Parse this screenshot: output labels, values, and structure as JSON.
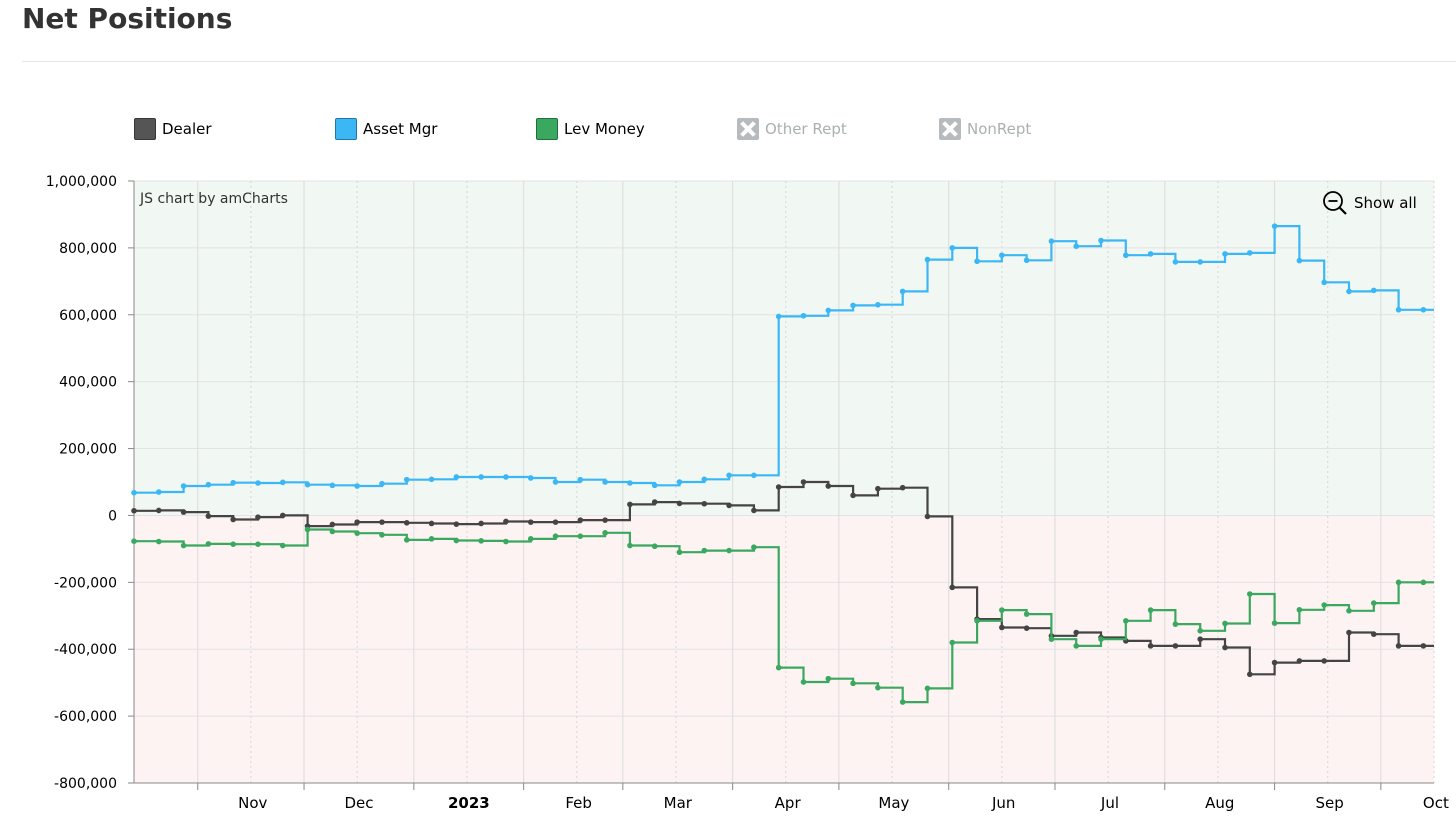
{
  "header": {
    "title": "Net Positions"
  },
  "legend": [
    {
      "label": "Dealer",
      "color": "#555555",
      "enabled": true
    },
    {
      "label": "Asset Mgr",
      "color": "#3bb7f5",
      "enabled": true
    },
    {
      "label": "Lev Money",
      "color": "#3aa85f",
      "enabled": true
    },
    {
      "label": "Other Rept",
      "color": "#b7bbbd",
      "enabled": false
    },
    {
      "label": "NonRept",
      "color": "#b7bbbd",
      "enabled": false
    }
  ],
  "watermark": "JS chart by amCharts",
  "show_all_label": "Show all",
  "icons": {
    "zoom_out": "zoom-out-icon",
    "legend_disabled": "close-icon"
  },
  "chart_data": {
    "type": "line",
    "step": true,
    "ylim": [
      -800000,
      1000000
    ],
    "yticks": [
      -800000,
      -600000,
      -400000,
      -200000,
      0,
      200000,
      400000,
      600000,
      800000,
      1000000
    ],
    "ytick_labels": [
      "-800,000",
      "-600,000",
      "-400,000",
      "-200,000",
      "0",
      "200,000",
      "400,000",
      "600,000",
      "800,000",
      "1,000,000"
    ],
    "xlim": [
      "2022-10-14",
      "2023-10-16"
    ],
    "xticks": [
      {
        "date": "2022-11-01",
        "label": "Nov",
        "bold": false
      },
      {
        "date": "2022-12-01",
        "label": "Dec",
        "bold": false
      },
      {
        "date": "2023-01-01",
        "label": "2023",
        "bold": true
      },
      {
        "date": "2023-02-01",
        "label": "Feb",
        "bold": false
      },
      {
        "date": "2023-03-01",
        "label": "Mar",
        "bold": false
      },
      {
        "date": "2023-04-01",
        "label": "Apr",
        "bold": false
      },
      {
        "date": "2023-05-01",
        "label": "May",
        "bold": false
      },
      {
        "date": "2023-06-01",
        "label": "Jun",
        "bold": false
      },
      {
        "date": "2023-07-01",
        "label": "Jul",
        "bold": false
      },
      {
        "date": "2023-08-01",
        "label": "Aug",
        "bold": false
      },
      {
        "date": "2023-09-01",
        "label": "Sep",
        "bold": false
      },
      {
        "date": "2023-10-01",
        "label": "Oct",
        "bold": false
      }
    ],
    "background": {
      "positive": "#f1f7f2",
      "negative": "#fdf3f3"
    },
    "grid": true,
    "dates": [
      "2022-10-14",
      "2022-10-21",
      "2022-10-28",
      "2022-11-04",
      "2022-11-11",
      "2022-11-18",
      "2022-11-25",
      "2022-12-02",
      "2022-12-09",
      "2022-12-16",
      "2022-12-23",
      "2022-12-30",
      "2023-01-06",
      "2023-01-13",
      "2023-01-20",
      "2023-01-27",
      "2023-02-03",
      "2023-02-10",
      "2023-02-17",
      "2023-02-24",
      "2023-03-03",
      "2023-03-10",
      "2023-03-17",
      "2023-03-24",
      "2023-03-31",
      "2023-04-07",
      "2023-04-14",
      "2023-04-21",
      "2023-04-28",
      "2023-05-05",
      "2023-05-12",
      "2023-05-19",
      "2023-05-26",
      "2023-06-02",
      "2023-06-09",
      "2023-06-16",
      "2023-06-23",
      "2023-06-30",
      "2023-07-07",
      "2023-07-14",
      "2023-07-21",
      "2023-07-28",
      "2023-08-04",
      "2023-08-11",
      "2023-08-18",
      "2023-08-25",
      "2023-09-01",
      "2023-09-08",
      "2023-09-15",
      "2023-09-22",
      "2023-09-29",
      "2023-10-06",
      "2023-10-13",
      "2023-10-16"
    ],
    "series": [
      {
        "name": "Asset Mgr",
        "color": "#3bb7f5",
        "values": [
          68000,
          70000,
          88000,
          92000,
          98000,
          97000,
          99000,
          92000,
          90000,
          88000,
          95000,
          107000,
          108000,
          115000,
          115000,
          115000,
          112000,
          100000,
          107000,
          100000,
          97000,
          90000,
          100000,
          108000,
          120000,
          120000,
          595000,
          597000,
          613000,
          628000,
          630000,
          670000,
          765000,
          800000,
          760000,
          778000,
          763000,
          820000,
          805000,
          822000,
          778000,
          782000,
          758000,
          758000,
          782000,
          785000,
          865000,
          762000,
          697000,
          670000,
          673000,
          615000,
          615000,
          615000
        ]
      },
      {
        "name": "Dealer",
        "color": "#444444",
        "values": [
          14000,
          15000,
          10000,
          -2000,
          -12000,
          -5000,
          0,
          -32000,
          -27000,
          -20000,
          -20000,
          -22000,
          -24000,
          -26000,
          -24000,
          -18000,
          -20000,
          -20000,
          -14000,
          -14000,
          33000,
          40000,
          36000,
          35000,
          30000,
          15000,
          85000,
          100000,
          88000,
          60000,
          80000,
          83000,
          -3000,
          -215000,
          -310000,
          -335000,
          -337000,
          -360000,
          -350000,
          -365000,
          -375000,
          -390000,
          -390000,
          -370000,
          -395000,
          -475000,
          -440000,
          -435000,
          -435000,
          -350000,
          -355000,
          -390000,
          -390000,
          -390000
        ]
      },
      {
        "name": "Lev Money",
        "color": "#3aa85f",
        "values": [
          -77000,
          -78000,
          -90000,
          -85000,
          -86000,
          -86000,
          -90000,
          -42000,
          -48000,
          -53000,
          -58000,
          -73000,
          -70000,
          -75000,
          -76000,
          -78000,
          -70000,
          -62000,
          -62000,
          -52000,
          -90000,
          -92000,
          -110000,
          -105000,
          -105000,
          -95000,
          -455000,
          -498000,
          -488000,
          -502000,
          -515000,
          -558000,
          -517000,
          -380000,
          -315000,
          -283000,
          -295000,
          -370000,
          -390000,
          -370000,
          -315000,
          -283000,
          -325000,
          -345000,
          -323000,
          -235000,
          -322000,
          -282000,
          -268000,
          -285000,
          -262000,
          -200000,
          -200000,
          -200000
        ]
      }
    ]
  }
}
